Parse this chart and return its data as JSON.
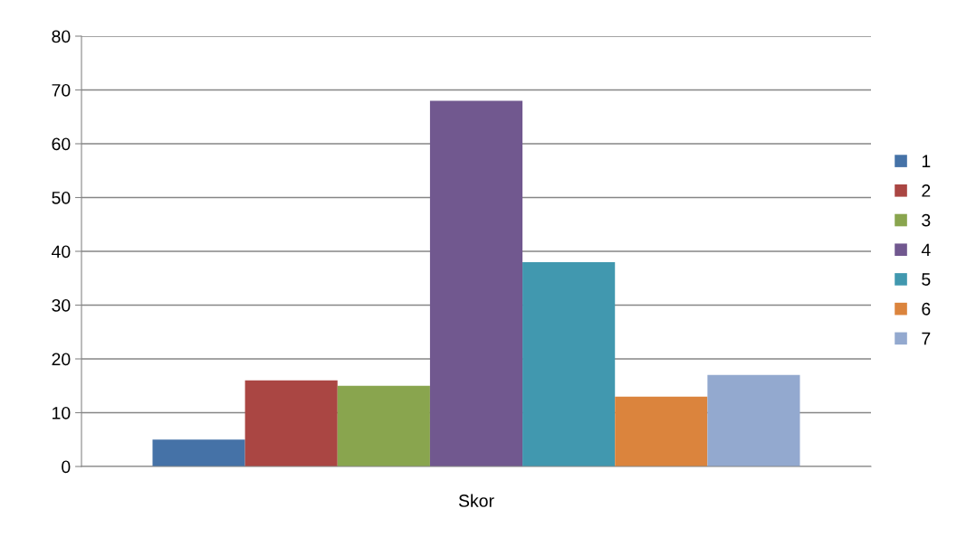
{
  "chart_data": {
    "type": "bar",
    "categories": [
      "Skor"
    ],
    "series": [
      {
        "name": "1",
        "color": "#4572a7",
        "values": [
          5
        ]
      },
      {
        "name": "2",
        "color": "#aa4643",
        "values": [
          16
        ]
      },
      {
        "name": "3",
        "color": "#89a54e",
        "values": [
          15
        ]
      },
      {
        "name": "4",
        "color": "#71588f",
        "values": [
          68
        ]
      },
      {
        "name": "5",
        "color": "#4198af",
        "values": [
          38
        ]
      },
      {
        "name": "6",
        "color": "#db843d",
        "values": [
          13
        ]
      },
      {
        "name": "7",
        "color": "#93a9cf",
        "values": [
          17
        ]
      }
    ],
    "ylim": [
      0,
      80
    ],
    "yticks": [
      0,
      10,
      20,
      30,
      40,
      50,
      60,
      70,
      80
    ],
    "grid": "y",
    "legend": "right"
  }
}
